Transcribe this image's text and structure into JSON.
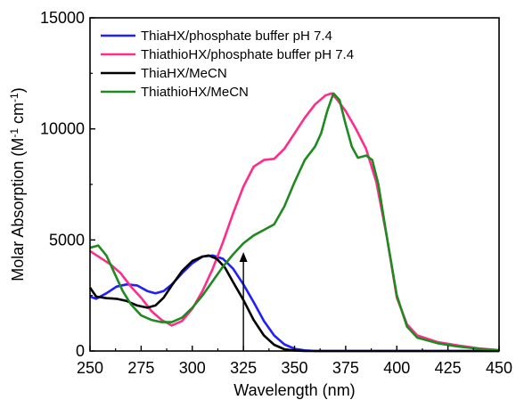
{
  "chart_data": {
    "type": "line",
    "title": "",
    "xlabel": "Wavelength (nm)",
    "ylabel_main": "Molar Absorption (M",
    "ylabel_sup1": "-1",
    "ylabel_mid": " cm",
    "ylabel_sup2": "-1",
    "ylabel_end": ")",
    "xlim": [
      250,
      450
    ],
    "ylim": [
      0,
      15000
    ],
    "x_ticks": [
      250,
      275,
      300,
      325,
      350,
      375,
      400,
      425,
      450
    ],
    "y_ticks": [
      0,
      5000,
      10000,
      15000
    ],
    "grid": false,
    "legend_position": "top-left",
    "series": [
      {
        "name": "ThiaHX/phosphate buffer pH 7.4",
        "color": "#1f1fff",
        "points": [
          [
            250,
            2450
          ],
          [
            253,
            2350
          ],
          [
            258,
            2600
          ],
          [
            263,
            2900
          ],
          [
            268,
            3000
          ],
          [
            273,
            2950
          ],
          [
            278,
            2700
          ],
          [
            282,
            2600
          ],
          [
            286,
            2700
          ],
          [
            290,
            3000
          ],
          [
            295,
            3500
          ],
          [
            300,
            3950
          ],
          [
            305,
            4250
          ],
          [
            310,
            4300
          ],
          [
            315,
            4150
          ],
          [
            320,
            3700
          ],
          [
            325,
            3000
          ],
          [
            330,
            2200
          ],
          [
            335,
            1350
          ],
          [
            340,
            700
          ],
          [
            345,
            300
          ],
          [
            350,
            100
          ],
          [
            355,
            30
          ],
          [
            360,
            0
          ],
          [
            450,
            0
          ]
        ]
      },
      {
        "name": "ThiathioHX/phosphate buffer pH 7.4",
        "color": "#ff2d8a",
        "points": [
          [
            250,
            4500
          ],
          [
            255,
            4200
          ],
          [
            260,
            3900
          ],
          [
            265,
            3500
          ],
          [
            270,
            2900
          ],
          [
            275,
            2400
          ],
          [
            280,
            1800
          ],
          [
            285,
            1400
          ],
          [
            290,
            1150
          ],
          [
            295,
            1350
          ],
          [
            300,
            1900
          ],
          [
            305,
            2700
          ],
          [
            310,
            3700
          ],
          [
            315,
            4900
          ],
          [
            320,
            6200
          ],
          [
            325,
            7400
          ],
          [
            330,
            8300
          ],
          [
            335,
            8600
          ],
          [
            340,
            8650
          ],
          [
            345,
            9100
          ],
          [
            350,
            9800
          ],
          [
            355,
            10500
          ],
          [
            360,
            11100
          ],
          [
            365,
            11500
          ],
          [
            368,
            11600
          ],
          [
            371,
            11300
          ],
          [
            375,
            10800
          ],
          [
            380,
            10000
          ],
          [
            385,
            9100
          ],
          [
            390,
            7600
          ],
          [
            395,
            5200
          ],
          [
            400,
            2400
          ],
          [
            405,
            1200
          ],
          [
            410,
            700
          ],
          [
            420,
            400
          ],
          [
            430,
            250
          ],
          [
            440,
            120
          ],
          [
            450,
            40
          ]
        ]
      },
      {
        "name": "ThiaHX/MeCN",
        "color": "#000000",
        "points": [
          [
            250,
            2850
          ],
          [
            253,
            2450
          ],
          [
            258,
            2380
          ],
          [
            263,
            2350
          ],
          [
            268,
            2250
          ],
          [
            273,
            2050
          ],
          [
            278,
            1950
          ],
          [
            282,
            2050
          ],
          [
            286,
            2400
          ],
          [
            290,
            2950
          ],
          [
            295,
            3600
          ],
          [
            300,
            4050
          ],
          [
            305,
            4250
          ],
          [
            308,
            4300
          ],
          [
            312,
            4150
          ],
          [
            316,
            3750
          ],
          [
            320,
            3100
          ],
          [
            325,
            2300
          ],
          [
            330,
            1400
          ],
          [
            335,
            700
          ],
          [
            340,
            280
          ],
          [
            345,
            80
          ],
          [
            350,
            20
          ],
          [
            355,
            0
          ],
          [
            450,
            0
          ]
        ]
      },
      {
        "name": "ThiathioHX/MeCN",
        "color": "#1f8a1f",
        "points": [
          [
            250,
            4650
          ],
          [
            254,
            4750
          ],
          [
            258,
            4300
          ],
          [
            262,
            3500
          ],
          [
            266,
            2700
          ],
          [
            270,
            2100
          ],
          [
            275,
            1600
          ],
          [
            280,
            1400
          ],
          [
            285,
            1300
          ],
          [
            290,
            1300
          ],
          [
            295,
            1500
          ],
          [
            300,
            1950
          ],
          [
            305,
            2500
          ],
          [
            310,
            3150
          ],
          [
            315,
            3800
          ],
          [
            320,
            4350
          ],
          [
            325,
            4850
          ],
          [
            330,
            5200
          ],
          [
            335,
            5450
          ],
          [
            340,
            5700
          ],
          [
            345,
            6500
          ],
          [
            350,
            7600
          ],
          [
            355,
            8600
          ],
          [
            360,
            9200
          ],
          [
            363,
            9800
          ],
          [
            366,
            10800
          ],
          [
            369,
            11600
          ],
          [
            372,
            11300
          ],
          [
            375,
            10200
          ],
          [
            378,
            9200
          ],
          [
            381,
            8700
          ],
          [
            385,
            8800
          ],
          [
            388,
            8600
          ],
          [
            391,
            7500
          ],
          [
            395,
            5200
          ],
          [
            400,
            2500
          ],
          [
            405,
            1100
          ],
          [
            410,
            600
          ],
          [
            420,
            350
          ],
          [
            430,
            200
          ],
          [
            440,
            100
          ],
          [
            450,
            30
          ]
        ]
      }
    ],
    "arrow": {
      "x": 325,
      "y_from": 0,
      "y_to": 4450
    }
  }
}
